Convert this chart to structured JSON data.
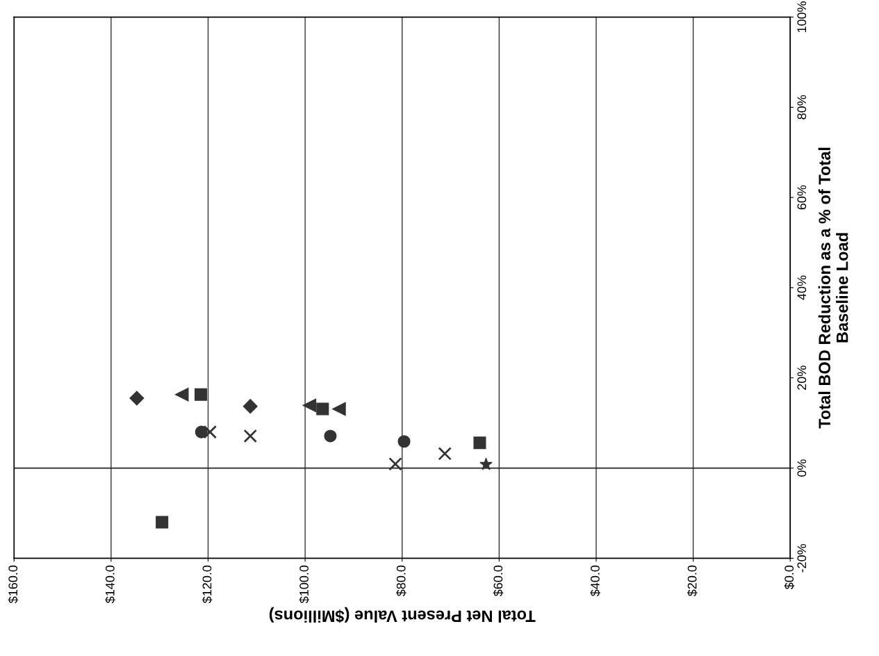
{
  "chart_data": {
    "type": "scatter",
    "xlabel": "Total Net Present Value ($Millions)",
    "ylabel": "Total BOD Reduction as a % of Total\nBaseline Load",
    "xlim": [
      160,
      0
    ],
    "ylim": [
      -20,
      100
    ],
    "xticks": [
      {
        "value": 160,
        "label": "$160.0"
      },
      {
        "value": 140,
        "label": "$140.0"
      },
      {
        "value": 120,
        "label": "$120.0"
      },
      {
        "value": 100,
        "label": "$100.0"
      },
      {
        "value": 80,
        "label": "$80.0"
      },
      {
        "value": 60,
        "label": "$60.0"
      },
      {
        "value": 40,
        "label": "$40.0"
      },
      {
        "value": 20,
        "label": "$20.0"
      },
      {
        "value": 0,
        "label": "$0.0"
      }
    ],
    "yticks": [
      {
        "value": -20,
        "label": "-20%"
      },
      {
        "value": 0,
        "label": "0%"
      },
      {
        "value": 20,
        "label": "20%"
      },
      {
        "value": 40,
        "label": "40%"
      },
      {
        "value": 60,
        "label": "60%"
      },
      {
        "value": 80,
        "label": "80%"
      },
      {
        "value": 100,
        "label": "100%"
      }
    ],
    "grid": "x",
    "ref_lines": [
      {
        "axis": "y",
        "value": 0,
        "color": "#222222"
      }
    ],
    "series": [
      {
        "color": "#333333",
        "marker": "diamond",
        "x": [
          134.7
        ],
        "values": [
          15.5
        ]
      },
      {
        "color": "#333333",
        "marker": "triangle",
        "x": [
          125.4
        ],
        "values": [
          16.3
        ]
      },
      {
        "color": "#333333",
        "marker": "square",
        "x": [
          121.5
        ],
        "values": [
          16.3
        ]
      },
      {
        "color": "#333333",
        "marker": "circle",
        "x": [
          121.4
        ],
        "values": [
          8.0
        ]
      },
      {
        "color": "#333333",
        "marker": "cross",
        "x": [
          119.6
        ],
        "values": [
          8.0
        ]
      },
      {
        "color": "#333333",
        "marker": "diamond",
        "x": [
          111.3
        ],
        "values": [
          13.7
        ]
      },
      {
        "color": "#333333",
        "marker": "cross",
        "x": [
          111.3
        ],
        "values": [
          7.1
        ]
      },
      {
        "color": "#333333",
        "marker": "triangle",
        "x": [
          99.1
        ],
        "values": [
          13.9
        ]
      },
      {
        "color": "#333333",
        "marker": "square",
        "x": [
          96.4
        ],
        "values": [
          13.1
        ]
      },
      {
        "color": "#333333",
        "marker": "triangle",
        "x": [
          93.0
        ],
        "values": [
          13.1
        ]
      },
      {
        "color": "#333333",
        "marker": "circle",
        "x": [
          94.8
        ],
        "values": [
          7.1
        ]
      },
      {
        "color": "#333333",
        "marker": "square",
        "x": [
          129.5
        ],
        "values": [
          -12.0
        ]
      },
      {
        "color": "#333333",
        "marker": "circle",
        "x": [
          79.6
        ],
        "values": [
          5.9
        ]
      },
      {
        "color": "#333333",
        "marker": "cross",
        "x": [
          81.4
        ],
        "values": [
          0.9
        ]
      },
      {
        "color": "#333333",
        "marker": "cross",
        "x": [
          71.2
        ],
        "values": [
          3.2
        ]
      },
      {
        "color": "#333333",
        "marker": "square",
        "x": [
          64.0
        ],
        "values": [
          5.6
        ]
      },
      {
        "color": "#333333",
        "marker": "star",
        "x": [
          62.7
        ],
        "values": [
          0.8
        ]
      }
    ]
  }
}
